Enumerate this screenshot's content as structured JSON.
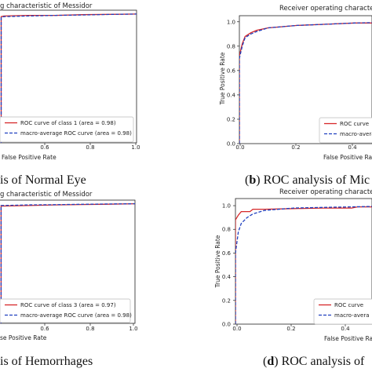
{
  "chart_data": [
    {
      "type": "line",
      "title": "Receiver operating characteristic of Messidor",
      "title_visible": "g characteristic of Messidor",
      "xlabel": "False Positive Rate",
      "xlabel_visible": "False Positive Rate",
      "ylabel": "",
      "xlim": [
        0,
        1.0
      ],
      "ylim": [
        0,
        1.0
      ],
      "xticks": [
        "0.6",
        "0.8",
        "1.0"
      ],
      "yticks": [],
      "legend_position": "bottom-right",
      "series": [
        {
          "name": "ROC curve of class 1 (area = 0.98)",
          "color": "#d62728",
          "dash": "solid",
          "x": [
            0,
            0.0,
            0.02,
            0.2,
            0.4,
            0.6,
            0.8,
            1.0
          ],
          "y": [
            0,
            0.98,
            0.985,
            0.99,
            0.99,
            0.995,
            0.998,
            1.0
          ]
        },
        {
          "name": "macro-average ROC curve (area = 0.98)",
          "color": "#1f3fbf",
          "dash": "dashed",
          "x": [
            0,
            0.0,
            0.02,
            0.2,
            0.4,
            0.6,
            0.8,
            1.0
          ],
          "y": [
            0,
            0.975,
            0.98,
            0.985,
            0.99,
            0.993,
            0.997,
            1.0
          ]
        }
      ],
      "caption": "is of Normal Eye",
      "caption_letter": ""
    },
    {
      "type": "line",
      "title": "Receiver operating characte",
      "xlabel": "False Positive Rate",
      "xlabel_visible": "False Positive Rate",
      "ylabel": "True Positive Rate",
      "xlim": [
        0,
        0.5
      ],
      "ylim": [
        0,
        1.0
      ],
      "xticks": [
        "0.0",
        "0.2",
        "0.4"
      ],
      "yticks": [
        "0.0",
        "0.2",
        "0.4",
        "0.6",
        "0.8",
        "1.0"
      ],
      "legend_position": "bottom-right",
      "series": [
        {
          "name": "ROC curve",
          "color": "#d62728",
          "dash": "solid",
          "x": [
            0,
            0.0,
            0.01,
            0.02,
            0.04,
            0.06,
            0.1,
            0.15,
            0.2,
            0.3,
            0.4,
            0.5
          ],
          "y": [
            0,
            0.72,
            0.82,
            0.88,
            0.91,
            0.93,
            0.95,
            0.96,
            0.97,
            0.98,
            0.99,
            0.99
          ]
        },
        {
          "name": "macro-avera",
          "color": "#1f3fbf",
          "dash": "dashed",
          "x": [
            0,
            0.0,
            0.01,
            0.02,
            0.04,
            0.06,
            0.1,
            0.15,
            0.2,
            0.3,
            0.4,
            0.5
          ],
          "y": [
            0,
            0.7,
            0.8,
            0.87,
            0.9,
            0.92,
            0.95,
            0.96,
            0.97,
            0.98,
            0.99,
            0.995
          ]
        }
      ],
      "caption_letter": "b",
      "caption": " ROC analysis of Mic"
    },
    {
      "type": "line",
      "title": "g characteristic of Messidor",
      "xlabel": "False Positive Rate",
      "xlabel_visible": "se Positive Rate",
      "ylabel": "",
      "xlim": [
        0,
        1.0
      ],
      "ylim": [
        0,
        1.0
      ],
      "xticks": [
        "0.6",
        "0.8",
        "1.0"
      ],
      "yticks": [],
      "legend_position": "bottom-right",
      "series": [
        {
          "name": "ROC curve of class 3 (area = 0.97)",
          "color": "#d62728",
          "dash": "solid",
          "x": [
            0,
            0.0,
            0.2,
            0.4,
            0.6,
            0.8,
            1.0
          ],
          "y": [
            0,
            0.98,
            0.985,
            0.99,
            0.993,
            0.996,
            1.0
          ]
        },
        {
          "name": "macro-average ROC curve (area = 0.98)",
          "color": "#1f3fbf",
          "dash": "dashed",
          "x": [
            0,
            0.0,
            0.2,
            0.4,
            0.6,
            0.8,
            1.0
          ],
          "y": [
            0,
            0.985,
            0.99,
            0.992,
            0.995,
            0.998,
            1.0
          ]
        }
      ],
      "caption_letter": "",
      "caption": "is of Hemorrhages"
    },
    {
      "type": "line",
      "title": "Receiver operating characte",
      "xlabel": "False Positive Rate",
      "xlabel_visible": "False Positive Rate",
      "ylabel": "True Positive Rate",
      "xlim": [
        0,
        0.5
      ],
      "ylim": [
        0,
        1.0
      ],
      "xticks": [
        "0.0",
        "0.2",
        "0.4"
      ],
      "yticks": [
        "0.0",
        "0.2",
        "0.4",
        "0.6",
        "0.8",
        "1.0"
      ],
      "legend_position": "bottom-right",
      "series": [
        {
          "name": "ROC curve",
          "color": "#d62728",
          "dash": "solid",
          "x": [
            0,
            0.0,
            0.01,
            0.02,
            0.05,
            0.06,
            0.07,
            0.1,
            0.2,
            0.3,
            0.4,
            0.42,
            0.5
          ],
          "y": [
            0,
            0.88,
            0.92,
            0.95,
            0.95,
            0.97,
            0.97,
            0.97,
            0.975,
            0.98,
            0.98,
            0.99,
            0.99
          ]
        },
        {
          "name": "macro-avera",
          "color": "#1f3fbf",
          "dash": "dashed",
          "x": [
            0,
            0.0,
            0.01,
            0.02,
            0.04,
            0.06,
            0.1,
            0.15,
            0.2,
            0.3,
            0.4,
            0.5
          ],
          "y": [
            0,
            0.6,
            0.78,
            0.85,
            0.9,
            0.93,
            0.96,
            0.97,
            0.98,
            0.985,
            0.99,
            0.995
          ]
        }
      ],
      "caption_letter": "d",
      "caption": " ROC analysis of"
    }
  ]
}
